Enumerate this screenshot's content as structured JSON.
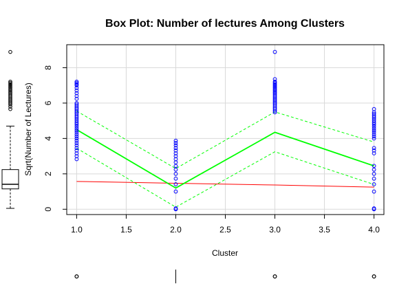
{
  "chart_data": {
    "type": "scatter",
    "title": "Box Plot: Number of lectures Among Clusters",
    "xlabel": "Cluster",
    "ylabel": "Sqrt(Number of Lectures)",
    "xlim": [
      0.9,
      4.1
    ],
    "ylim": [
      -0.3,
      9.3
    ],
    "x_ticks": [
      "1.0",
      "1.5",
      "2.0",
      "2.5",
      "3.0",
      "3.5",
      "4.0"
    ],
    "y_ticks": [
      "0",
      "2",
      "4",
      "6",
      "8"
    ],
    "grid": true,
    "points": [
      {
        "cluster": 1,
        "color": "#0000ff",
        "y": [
          2.83,
          3.0,
          3.16,
          3.32,
          3.46,
          3.61,
          3.74,
          3.87,
          4.0,
          4.12,
          4.24,
          4.36,
          4.47,
          4.58,
          4.69,
          4.8,
          4.9,
          5.0,
          5.1,
          5.2,
          5.29,
          5.39,
          5.48,
          5.57,
          5.66,
          5.74,
          5.83,
          5.92,
          6.0,
          6.24,
          6.4,
          6.56,
          6.71,
          6.86,
          7.0,
          7.07,
          7.14,
          7.21
        ]
      },
      {
        "cluster": 2,
        "color": "#0000ff",
        "y": [
          0,
          0.05,
          1.0,
          1.41,
          1.73,
          2.0,
          2.24,
          2.45,
          2.65,
          2.83,
          3.0,
          3.16,
          3.32,
          3.46,
          3.61,
          3.74,
          3.87
        ]
      },
      {
        "cluster": 3,
        "color": "#0000ff",
        "y": [
          5.48,
          5.57,
          5.66,
          5.74,
          5.83,
          5.92,
          6.0,
          6.08,
          6.16,
          6.24,
          6.32,
          6.4,
          6.48,
          6.56,
          6.63,
          6.71,
          6.78,
          6.86,
          6.93,
          7.0,
          7.07,
          7.14,
          7.21,
          7.35,
          8.89
        ]
      },
      {
        "cluster": 4,
        "color": "#0000ff",
        "y": [
          0,
          0.05,
          1.0,
          1.41,
          1.73,
          2.0,
          2.24,
          2.45,
          3.16,
          3.32,
          3.46,
          4.0,
          4.12,
          4.24,
          4.36,
          4.47,
          4.58,
          4.69,
          4.8,
          4.9,
          5.0,
          5.1,
          5.2,
          5.29,
          5.39,
          5.48,
          5.66
        ]
      }
    ],
    "lines": [
      {
        "color": "#00ff00",
        "style": "solid",
        "width": 1.8,
        "x": [
          1,
          2,
          3,
          4
        ],
        "y": [
          4.5,
          1.2,
          4.35,
          2.45
        ]
      },
      {
        "color": "#00ff00",
        "style": "dashed",
        "width": 1,
        "x": [
          1,
          2,
          3,
          4
        ],
        "y": [
          5.55,
          2.3,
          5.5,
          3.8
        ]
      },
      {
        "color": "#00ff00",
        "style": "dashed",
        "width": 1,
        "x": [
          1,
          2,
          3,
          4
        ],
        "y": [
          3.45,
          0.12,
          3.25,
          1.4
        ]
      },
      {
        "color": "#ff0000",
        "style": "solid",
        "width": 1,
        "x": [
          1,
          2,
          3,
          4
        ],
        "y": [
          1.57,
          1.47,
          1.37,
          1.25
        ]
      }
    ],
    "y_boxplot": {
      "min": 0.05,
      "q1": 1.15,
      "median": 1.41,
      "q3": 2.24,
      "upper_whisker": 4.7,
      "outliers": [
        5.66,
        5.8,
        5.92,
        6.0,
        6.08,
        6.16,
        6.24,
        6.32,
        6.4,
        6.48,
        6.56,
        6.63,
        6.71,
        6.78,
        6.86,
        6.93,
        7.0,
        7.07,
        7.14,
        7.21,
        8.89
      ]
    },
    "x_boxplot": {
      "median": 2,
      "outliers": [
        1,
        3,
        4
      ]
    }
  }
}
